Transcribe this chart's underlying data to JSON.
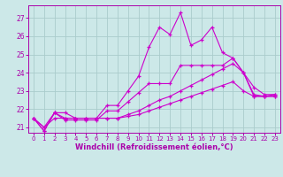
{
  "title": "",
  "xlabel": "Windchill (Refroidissement éolien,°C)",
  "bg_color": "#cce8e8",
  "grid_color": "#aacccc",
  "line_color": "#cc00cc",
  "text_color": "#aa00aa",
  "xlim": [
    -0.5,
    23.5
  ],
  "ylim": [
    20.7,
    27.7
  ],
  "yticks": [
    21,
    22,
    23,
    24,
    25,
    26,
    27
  ],
  "xticks": [
    0,
    1,
    2,
    3,
    4,
    5,
    6,
    7,
    8,
    9,
    10,
    11,
    12,
    13,
    14,
    15,
    16,
    17,
    18,
    19,
    20,
    21,
    22,
    23
  ],
  "line1_y": [
    21.5,
    20.8,
    21.8,
    21.8,
    21.5,
    21.5,
    21.5,
    22.2,
    22.2,
    23.0,
    23.8,
    25.4,
    26.5,
    26.1,
    27.3,
    25.5,
    25.8,
    26.5,
    25.1,
    24.8,
    24.0,
    23.2,
    22.8,
    22.8
  ],
  "line2_y": [
    21.5,
    20.8,
    21.8,
    21.4,
    21.4,
    21.4,
    21.4,
    21.9,
    21.9,
    22.4,
    22.9,
    23.4,
    23.4,
    23.4,
    24.4,
    24.4,
    24.4,
    24.4,
    24.4,
    24.8,
    24.0,
    22.7,
    22.7,
    22.7
  ],
  "line3_y": [
    21.5,
    21.0,
    21.8,
    21.5,
    21.5,
    21.5,
    21.5,
    21.5,
    21.5,
    21.7,
    21.9,
    22.2,
    22.5,
    22.7,
    23.0,
    23.3,
    23.6,
    23.9,
    24.2,
    24.5,
    24.0,
    22.8,
    22.7,
    22.7
  ],
  "line4_y": [
    21.5,
    21.0,
    21.5,
    21.5,
    21.5,
    21.5,
    21.5,
    21.5,
    21.5,
    21.6,
    21.7,
    21.9,
    22.1,
    22.3,
    22.5,
    22.7,
    22.9,
    23.1,
    23.3,
    23.5,
    23.0,
    22.7,
    22.7,
    22.8
  ]
}
